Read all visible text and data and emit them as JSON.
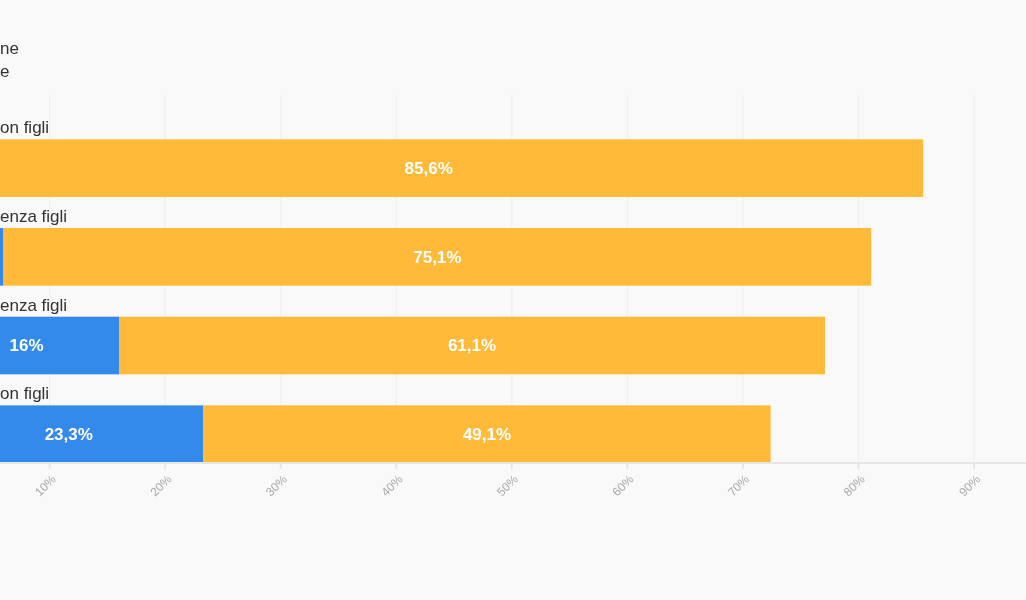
{
  "chart_data": {
    "type": "bar",
    "orientation": "horizontal",
    "stacked": true,
    "categories": [
      "on figli",
      "enza figli",
      "enza figli",
      "on figli"
    ],
    "series": [
      {
        "color": "#338aeb",
        "values": [
          null,
          6.0,
          16,
          23.3
        ],
        "value_labels": [
          null,
          null,
          "16%",
          "23,3%"
        ]
      },
      {
        "color": "#ffba3a",
        "values": [
          85.6,
          75.1,
          61.1,
          49.1
        ],
        "value_labels": [
          "85,6%",
          "75,1%",
          "61,1%",
          "49,1%"
        ]
      }
    ],
    "xlim": [
      5.7,
      94.5
    ],
    "xticks": [
      {
        "value": 10,
        "label": "10%"
      },
      {
        "value": 20,
        "label": "20%"
      },
      {
        "value": 30,
        "label": "30%"
      },
      {
        "value": 40,
        "label": "40%"
      },
      {
        "value": 50,
        "label": "50%"
      },
      {
        "value": 60,
        "label": "60%"
      },
      {
        "value": 70,
        "label": "70%"
      },
      {
        "value": 80,
        "label": "80%"
      },
      {
        "value": 90,
        "label": "90%"
      }
    ],
    "grid": "x",
    "annotations": [
      "ne",
      "e"
    ]
  }
}
